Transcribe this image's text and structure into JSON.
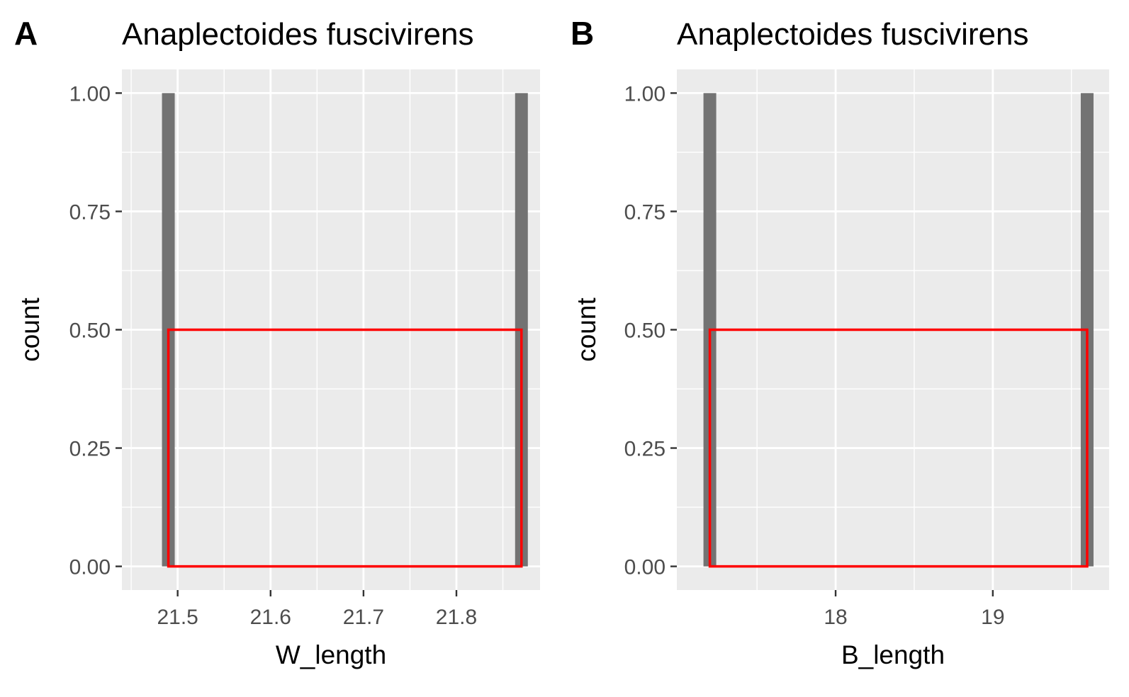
{
  "colors": {
    "panel_background": "#ebebeb",
    "grid": "#ffffff",
    "bar_fill": "#737373",
    "box_outline": "#ff0000",
    "tick_text": "#4d4d4d",
    "text": "#000000"
  },
  "chart_data": [
    {
      "type": "bar",
      "tag": "A",
      "title": "Anaplectoides fuscivirens",
      "xlabel": "W_length",
      "ylabel": "count",
      "grid": true,
      "xlim": [
        21.44,
        21.89
      ],
      "ylim": [
        -0.05,
        1.05
      ],
      "x_ticks": [
        21.5,
        21.6,
        21.7,
        21.8
      ],
      "x_tick_labels": [
        "21.5",
        "21.6",
        "21.7",
        "21.8"
      ],
      "y_ticks": [
        0,
        0.25,
        0.5,
        0.75,
        1
      ],
      "y_tick_labels": [
        "0.00",
        "0.25",
        "0.50",
        "0.75",
        "1.00"
      ],
      "bars": [
        {
          "x": 21.49,
          "count": 1
        },
        {
          "x": 21.87,
          "count": 1
        }
      ],
      "annotation_box": {
        "x": [
          21.49,
          21.87
        ],
        "y": [
          0,
          0.5
        ],
        "color": "#ff0000"
      }
    },
    {
      "type": "bar",
      "tag": "B",
      "title": "Anaplectoides fuscivirens",
      "xlabel": "B_length",
      "ylabel": "count",
      "grid": true,
      "xlim": [
        16.99,
        19.74
      ],
      "ylim": [
        -0.05,
        1.05
      ],
      "x_ticks": [
        18,
        19
      ],
      "x_tick_labels": [
        "18",
        "19"
      ],
      "y_ticks": [
        0,
        0.25,
        0.5,
        0.75,
        1
      ],
      "y_tick_labels": [
        "0.00",
        "0.25",
        "0.50",
        "0.75",
        "1.00"
      ],
      "bars": [
        {
          "x": 17.2,
          "count": 1
        },
        {
          "x": 19.6,
          "count": 1
        }
      ],
      "annotation_box": {
        "x": [
          17.2,
          19.6
        ],
        "y": [
          0,
          0.5
        ],
        "color": "#ff0000"
      }
    }
  ]
}
